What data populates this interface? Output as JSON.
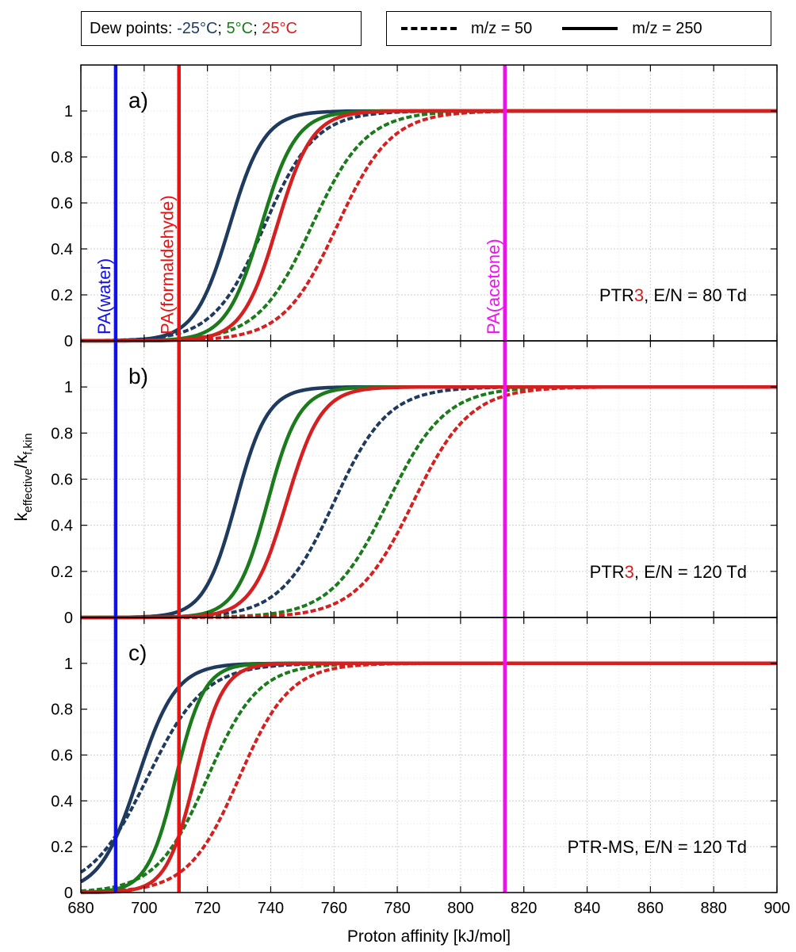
{
  "legend": {
    "dew_label": "Dew points:",
    "dew_items": [
      {
        "text": "-25°C",
        "color": "#1f3a5f"
      },
      {
        "text": "5°C",
        "color": "#1b7a1b"
      },
      {
        "text": "25°C",
        "color": "#d42020"
      }
    ],
    "dew_sep": ";",
    "mz_dashed": "m/z = 50",
    "mz_solid": "m/z = 250"
  },
  "chart_data": {
    "type": "line",
    "xlabel": "Proton affinity [kJ/mol]",
    "ylabel_main": "k",
    "ylabel_sub1": "effective",
    "ylabel_slash": "/k",
    "ylabel_sub2": "f,kin",
    "xlim": [
      680,
      900
    ],
    "ylim": [
      0,
      1.2
    ],
    "xticks": [
      "680",
      "700",
      "720",
      "740",
      "760",
      "780",
      "800",
      "820",
      "840",
      "860",
      "880",
      "900"
    ],
    "yticks": [
      "0",
      "0.2",
      "0.4",
      "0.6",
      "0.8",
      "1"
    ],
    "grid": true,
    "colors": {
      "dew_-25": "#1f3a5f",
      "dew_5": "#1b7a1b",
      "dew_25": "#d42020"
    },
    "reference_lines": [
      {
        "label": "PA(water)",
        "x": 691,
        "color": "#1010ee"
      },
      {
        "label": "PA(formaldehyde)",
        "x": 711,
        "color": "#ee1010"
      },
      {
        "label": "PA(acetone)",
        "x": 814,
        "color": "#ee10ee"
      }
    ],
    "panels": [
      {
        "tag": "a)",
        "label_prefix": "PTR",
        "label_highlight": "3",
        "label_suffix": ", E/N = 80 Td",
        "series": [
          {
            "dew": "-25°C",
            "mz": "50",
            "color": "#1f3a5f",
            "x0": 738,
            "s": 8
          },
          {
            "dew": "5°C",
            "mz": "50",
            "color": "#1b7a1b",
            "x0": 753,
            "s": 8.5
          },
          {
            "dew": "25°C",
            "mz": "50",
            "color": "#d42020",
            "x0": 761,
            "s": 8.5
          },
          {
            "dew": "-25°C",
            "mz": "250",
            "color": "#1f3a5f",
            "x0": 727,
            "s": 5.5
          },
          {
            "dew": "5°C",
            "mz": "250",
            "color": "#1b7a1b",
            "x0": 737,
            "s": 5.5
          },
          {
            "dew": "25°C",
            "mz": "250",
            "color": "#d42020",
            "x0": 742,
            "s": 5.5
          }
        ]
      },
      {
        "tag": "b)",
        "label_prefix": "PTR",
        "label_highlight": "3",
        "label_suffix": ", E/N = 120 Td",
        "series": [
          {
            "dew": "-25°C",
            "mz": "50",
            "color": "#1f3a5f",
            "x0": 760,
            "s": 8.5
          },
          {
            "dew": "5°C",
            "mz": "50",
            "color": "#1b7a1b",
            "x0": 777,
            "s": 9
          },
          {
            "dew": "25°C",
            "mz": "50",
            "color": "#d42020",
            "x0": 785,
            "s": 9
          },
          {
            "dew": "-25°C",
            "mz": "250",
            "color": "#1f3a5f",
            "x0": 729,
            "s": 5
          },
          {
            "dew": "5°C",
            "mz": "250",
            "color": "#1b7a1b",
            "x0": 739,
            "s": 5
          },
          {
            "dew": "25°C",
            "mz": "250",
            "color": "#d42020",
            "x0": 745,
            "s": 5.5
          }
        ]
      },
      {
        "tag": "c)",
        "label_prefix": "PTR-MS, E/N = 120 Td",
        "label_highlight": "",
        "label_suffix": "",
        "series": [
          {
            "dew": "-25°C",
            "mz": "50",
            "color": "#1f3a5f",
            "x0": 701,
            "s": 9
          },
          {
            "dew": "5°C",
            "mz": "50",
            "color": "#1b7a1b",
            "x0": 720,
            "s": 8
          },
          {
            "dew": "25°C",
            "mz": "50",
            "color": "#d42020",
            "x0": 730,
            "s": 8
          },
          {
            "dew": "-25°C",
            "mz": "250",
            "color": "#1f3a5f",
            "x0": 698,
            "s": 6
          },
          {
            "dew": "5°C",
            "mz": "250",
            "color": "#1b7a1b",
            "x0": 710,
            "s": 4.5
          },
          {
            "dew": "25°C",
            "mz": "250",
            "color": "#d42020",
            "x0": 716,
            "s": 4.5
          }
        ]
      }
    ]
  }
}
